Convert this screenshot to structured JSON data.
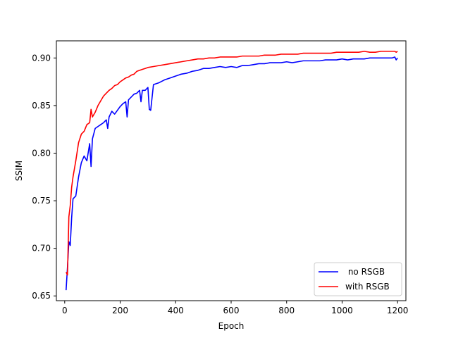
{
  "chart_data": {
    "type": "line",
    "title": "",
    "xlabel": "Epoch",
    "ylabel": "SSIM",
    "xlim": [
      -30,
      1230
    ],
    "ylim": [
      0.645,
      0.918
    ],
    "xticks": [
      0,
      200,
      400,
      600,
      800,
      1000,
      1200
    ],
    "yticks": [
      0.65,
      0.7,
      0.75,
      0.8,
      0.85,
      0.9
    ],
    "ytick_labels": [
      "0.65",
      "0.70",
      "0.75",
      "0.80",
      "0.85",
      "0.90"
    ],
    "grid": false,
    "legend_position": "lower-right",
    "series": [
      {
        "name": " no RSGB",
        "color": "#0000ff",
        "x": [
          5,
          10,
          15,
          20,
          25,
          30,
          40,
          50,
          60,
          70,
          80,
          90,
          95,
          100,
          110,
          120,
          130,
          140,
          150,
          155,
          160,
          170,
          180,
          190,
          200,
          210,
          220,
          225,
          230,
          240,
          250,
          260,
          270,
          275,
          280,
          290,
          300,
          305,
          310,
          320,
          340,
          360,
          380,
          400,
          420,
          440,
          460,
          480,
          500,
          520,
          540,
          560,
          580,
          600,
          620,
          640,
          660,
          680,
          700,
          720,
          740,
          760,
          780,
          800,
          820,
          840,
          860,
          880,
          900,
          920,
          940,
          960,
          980,
          1000,
          1020,
          1040,
          1060,
          1080,
          1100,
          1120,
          1140,
          1160,
          1180,
          1190,
          1195,
          1200
        ],
        "y": [
          0.656,
          0.68,
          0.707,
          0.703,
          0.732,
          0.752,
          0.755,
          0.775,
          0.79,
          0.797,
          0.792,
          0.81,
          0.786,
          0.815,
          0.826,
          0.828,
          0.83,
          0.832,
          0.835,
          0.826,
          0.838,
          0.844,
          0.841,
          0.845,
          0.849,
          0.852,
          0.854,
          0.838,
          0.856,
          0.859,
          0.862,
          0.863,
          0.866,
          0.854,
          0.866,
          0.866,
          0.869,
          0.846,
          0.845,
          0.872,
          0.874,
          0.877,
          0.879,
          0.881,
          0.883,
          0.884,
          0.886,
          0.887,
          0.889,
          0.889,
          0.89,
          0.891,
          0.89,
          0.891,
          0.89,
          0.892,
          0.892,
          0.893,
          0.894,
          0.894,
          0.895,
          0.895,
          0.895,
          0.896,
          0.895,
          0.896,
          0.897,
          0.897,
          0.897,
          0.897,
          0.898,
          0.898,
          0.898,
          0.899,
          0.898,
          0.899,
          0.899,
          0.899,
          0.9,
          0.9,
          0.9,
          0.9,
          0.9,
          0.901,
          0.898,
          0.9
        ]
      },
      {
        "name": "with RSGB",
        "color": "#ff0000",
        "x": [
          5,
          10,
          15,
          20,
          25,
          30,
          40,
          50,
          60,
          70,
          80,
          90,
          95,
          100,
          110,
          120,
          130,
          140,
          150,
          160,
          170,
          180,
          190,
          200,
          210,
          220,
          230,
          240,
          250,
          260,
          270,
          280,
          290,
          300,
          320,
          340,
          360,
          380,
          400,
          420,
          440,
          460,
          480,
          500,
          520,
          540,
          560,
          580,
          600,
          620,
          640,
          660,
          680,
          700,
          720,
          740,
          760,
          780,
          800,
          820,
          840,
          860,
          880,
          900,
          920,
          940,
          960,
          980,
          1000,
          1020,
          1040,
          1060,
          1080,
          1100,
          1120,
          1140,
          1160,
          1180,
          1190,
          1195,
          1200
        ],
        "y": [
          0.675,
          0.672,
          0.733,
          0.745,
          0.764,
          0.775,
          0.792,
          0.811,
          0.82,
          0.823,
          0.83,
          0.832,
          0.846,
          0.838,
          0.843,
          0.85,
          0.855,
          0.86,
          0.863,
          0.866,
          0.868,
          0.871,
          0.872,
          0.875,
          0.877,
          0.879,
          0.88,
          0.882,
          0.883,
          0.886,
          0.887,
          0.888,
          0.889,
          0.89,
          0.891,
          0.892,
          0.893,
          0.894,
          0.895,
          0.896,
          0.897,
          0.898,
          0.899,
          0.899,
          0.9,
          0.9,
          0.901,
          0.901,
          0.901,
          0.901,
          0.902,
          0.902,
          0.902,
          0.902,
          0.903,
          0.903,
          0.903,
          0.904,
          0.904,
          0.904,
          0.904,
          0.905,
          0.905,
          0.905,
          0.905,
          0.905,
          0.905,
          0.906,
          0.906,
          0.906,
          0.906,
          0.906,
          0.907,
          0.906,
          0.906,
          0.907,
          0.907,
          0.907,
          0.907,
          0.906,
          0.907
        ]
      }
    ]
  }
}
